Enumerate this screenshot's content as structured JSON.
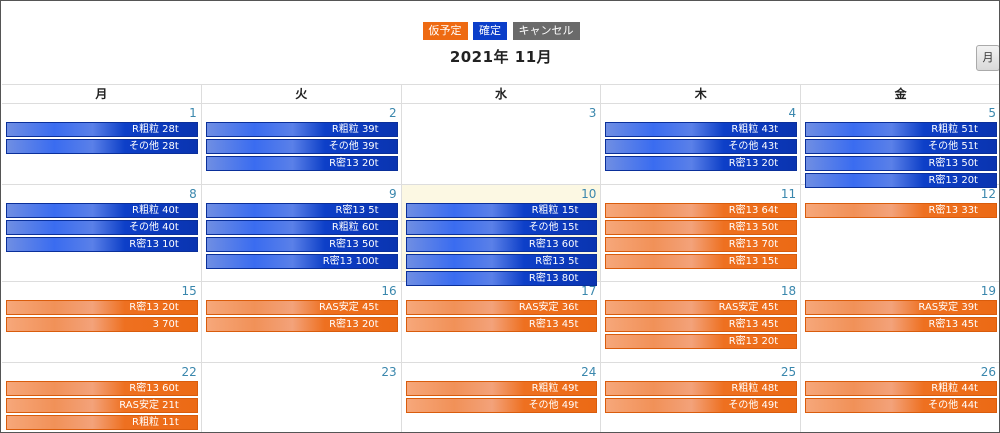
{
  "legend": {
    "tentative": {
      "label": "仮予定",
      "color": "#ee6a12"
    },
    "confirmed": {
      "label": "確定",
      "color": "#0b3ec9"
    },
    "cancel": {
      "label": "キャンセル",
      "color": "#6a6a6a"
    }
  },
  "title": "2021年 11月",
  "month_button": "月",
  "weekdays": [
    "月",
    "火",
    "水",
    "木",
    "金"
  ],
  "weeks": [
    {
      "days": [
        {
          "num": "1",
          "events": [
            {
              "label": "R粗粒 28t",
              "status": "blue"
            },
            {
              "label": "その他 28t",
              "status": "blue"
            }
          ]
        },
        {
          "num": "2",
          "events": [
            {
              "label": "R粗粒 39t",
              "status": "blue"
            },
            {
              "label": "その他 39t",
              "status": "blue"
            },
            {
              "label": "R密13 20t",
              "status": "blue"
            }
          ]
        },
        {
          "num": "3",
          "events": []
        },
        {
          "num": "4",
          "events": [
            {
              "label": "R粗粒 43t",
              "status": "blue"
            },
            {
              "label": "その他 43t",
              "status": "blue"
            },
            {
              "label": "R密13 20t",
              "status": "blue"
            }
          ]
        },
        {
          "num": "5",
          "events": [
            {
              "label": "R粗粒 51t",
              "status": "blue"
            },
            {
              "label": "その他 51t",
              "status": "blue"
            },
            {
              "label": "R密13 50t",
              "status": "blue"
            },
            {
              "label": "R密13 20t",
              "status": "blue"
            }
          ]
        }
      ]
    },
    {
      "days": [
        {
          "num": "8",
          "events": [
            {
              "label": "R粗粒 40t",
              "status": "blue"
            },
            {
              "label": "その他 40t",
              "status": "blue"
            },
            {
              "label": "R密13 10t",
              "status": "blue"
            }
          ]
        },
        {
          "num": "9",
          "events": [
            {
              "label": "R密13 5t",
              "status": "blue"
            },
            {
              "label": "R粗粒 60t",
              "status": "blue"
            },
            {
              "label": "R密13 50t",
              "status": "blue"
            },
            {
              "label": "R密13 100t",
              "status": "blue"
            }
          ]
        },
        {
          "num": "10",
          "today": true,
          "events": [
            {
              "label": "R粗粒 15t",
              "status": "blue"
            },
            {
              "label": "その他 15t",
              "status": "blue"
            },
            {
              "label": "R密13 60t",
              "status": "blue"
            },
            {
              "label": "R密13 5t",
              "status": "blue"
            },
            {
              "label": "R密13 80t",
              "status": "blue"
            }
          ]
        },
        {
          "num": "11",
          "events": [
            {
              "label": "R密13 64t",
              "status": "orange"
            },
            {
              "label": "R密13 50t",
              "status": "orange"
            },
            {
              "label": "R密13 70t",
              "status": "orange"
            },
            {
              "label": "R密13 15t",
              "status": "orange"
            }
          ]
        },
        {
          "num": "12",
          "events": [
            {
              "label": "R密13 33t",
              "status": "orange"
            }
          ]
        }
      ]
    },
    {
      "days": [
        {
          "num": "15",
          "events": [
            {
              "label": "R密13 20t",
              "status": "orange"
            },
            {
              "label": "3 70t",
              "status": "orange"
            }
          ]
        },
        {
          "num": "16",
          "events": [
            {
              "label": "RAS安定 45t",
              "status": "orange"
            },
            {
              "label": "R密13 20t",
              "status": "orange"
            }
          ]
        },
        {
          "num": "17",
          "events": [
            {
              "label": "RAS安定 36t",
              "status": "orange"
            },
            {
              "label": "R密13 45t",
              "status": "orange"
            }
          ]
        },
        {
          "num": "18",
          "events": [
            {
              "label": "RAS安定 45t",
              "status": "orange"
            },
            {
              "label": "R密13 45t",
              "status": "orange"
            },
            {
              "label": "R密13 20t",
              "status": "orange"
            }
          ]
        },
        {
          "num": "19",
          "events": [
            {
              "label": "RAS安定 39t",
              "status": "orange"
            },
            {
              "label": "R密13 45t",
              "status": "orange"
            }
          ]
        }
      ]
    },
    {
      "days": [
        {
          "num": "22",
          "events": [
            {
              "label": "R密13 60t",
              "status": "orange"
            },
            {
              "label": "RAS安定 21t",
              "status": "orange"
            },
            {
              "label": "R粗粒 11t",
              "status": "orange"
            }
          ]
        },
        {
          "num": "23",
          "events": []
        },
        {
          "num": "24",
          "events": [
            {
              "label": "R粗粒 49t",
              "status": "orange"
            },
            {
              "label": "その他 49t",
              "status": "orange"
            }
          ]
        },
        {
          "num": "25",
          "events": [
            {
              "label": "R粗粒 48t",
              "status": "orange"
            },
            {
              "label": "その他 49t",
              "status": "orange"
            }
          ]
        },
        {
          "num": "26",
          "events": [
            {
              "label": "R粗粒 44t",
              "status": "orange"
            },
            {
              "label": "その他 44t",
              "status": "orange"
            }
          ]
        }
      ]
    }
  ]
}
